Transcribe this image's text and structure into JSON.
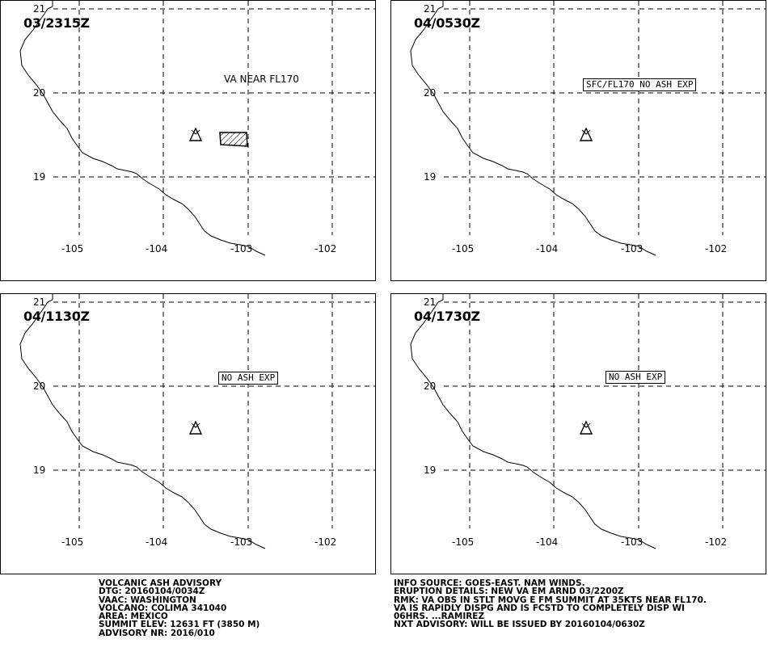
{
  "panels": [
    {
      "time": "03/2315Z",
      "label": "VA NEAR FL170",
      "label_style": "plain",
      "ash_area": true
    },
    {
      "time": "04/0530Z",
      "label": "SFC/FL170 NO ASH EXP",
      "label_style": "boxed",
      "ash_area": false
    },
    {
      "time": "04/1130Z",
      "label": "NO ASH EXP",
      "label_style": "boxed",
      "ash_area": false
    },
    {
      "time": "04/1730Z",
      "label": "NO ASH EXP",
      "label_style": "boxed",
      "ash_area": false
    }
  ],
  "map": {
    "lat_labels": [
      "21",
      "20",
      "19"
    ],
    "lon_labels": [
      "-105",
      "-104",
      "-103",
      "-102"
    ],
    "volcano_icon": "volcano-triangle-icon",
    "grid": "dashed"
  },
  "advisory_left": [
    "VOLCANIC ASH ADVISORY",
    "DTG: 20160104/0034Z",
    "VAAC: WASHINGTON",
    "VOLCANO: COLIMA 341040",
    "AREA: MEXICO",
    "SUMMIT ELEV: 12631 FT (3850 M)",
    "ADVISORY NR: 2016/010"
  ],
  "advisory_right": [
    "INFO SOURCE: GOES-EAST. NAM WINDS.",
    "ERUPTION DETAILS: NEW VA EM ARND 03/2200Z",
    "RMK: VA OBS IN STLT MOVG E FM SUMMIT AT 35KTS NEAR FL170.",
    "VA IS RAPIDLY DISPG AND IS FCSTD TO COMPLETELY DISP WI",
    "06HRS. ...RAMIREZ",
    "NXT ADVISORY: WILL BE ISSUED BY 20160104/0630Z"
  ]
}
